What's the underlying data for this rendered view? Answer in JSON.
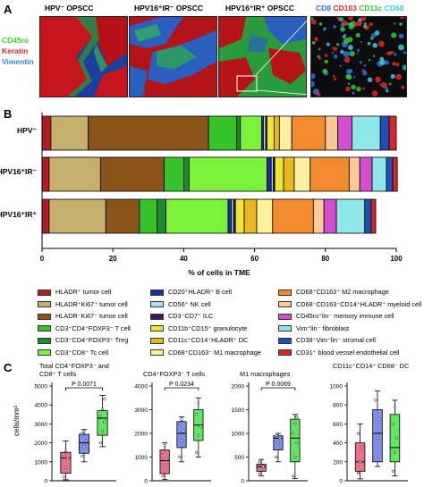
{
  "panel_a": {
    "letter": "A",
    "titles": [
      "HPV⁻ OPSCC",
      "HPV16⁺IR⁻ OPSCC",
      "HPV16⁺IR⁺ OPSCC"
    ],
    "left_markers": [
      {
        "label": "CD45ro",
        "color": "#3dd62e"
      },
      {
        "label": "Keratin",
        "color": "#e8232a"
      },
      {
        "label": "Vimentin",
        "color": "#2e86e8"
      }
    ],
    "zoom_markers": [
      {
        "label": "CD8",
        "color": "#2e6fe8"
      },
      {
        "label": "CD103",
        "color": "#e8232a"
      },
      {
        "label": "CD11c",
        "color": "#2fc92f"
      },
      {
        "label": "CD68",
        "color": "#3fc9e0"
      }
    ]
  },
  "panel_b": {
    "letter": "B",
    "xlabel": "% of cells in TME"
  },
  "panel_c": {
    "letter": "C",
    "ylabel": "cells/mm²"
  },
  "chart_data": [
    {
      "type": "bar",
      "orientation": "horizontal",
      "stacked": true,
      "xlabel": "% of cells in TME",
      "xlim": [
        0,
        100
      ],
      "xticks": [
        "0",
        "20",
        "40",
        "60",
        "80",
        "100"
      ],
      "categories": [
        "HPV⁻",
        "HPV16⁺IR⁻",
        "HPV16⁺IR⁺"
      ],
      "legend_position": "bottom",
      "series": [
        {
          "name": "HLADR⁺ tumor cell",
          "color": "#b01e23",
          "values": [
            2.5,
            2.0,
            2.0
          ]
        },
        {
          "name": "HLADR⁺Ki67⁺ tumor cell",
          "color": "#c4b06b",
          "values": [
            10.5,
            14.5,
            16.0
          ]
        },
        {
          "name": "HLADR⁻Ki67⁻ tumor cell",
          "color": "#8a5418",
          "values": [
            34.0,
            18.0,
            9.5
          ]
        },
        {
          "name": "CD3⁺CD4⁺FOXP3⁻ T cell",
          "color": "#37c42a",
          "values": [
            8.0,
            5.5,
            5.0
          ]
        },
        {
          "name": "CD3⁺CD4⁺FOXP3⁺ Treg",
          "color": "#1e8c2e",
          "values": [
            1.0,
            1.5,
            2.5
          ]
        },
        {
          "name": "CD3⁺CD8⁺ Tc cell",
          "color": "#7cf23c",
          "values": [
            6.0,
            22.0,
            17.5
          ]
        },
        {
          "name": "CD20⁺HLADR⁺ B cell",
          "color": "#1b2fa8",
          "values": [
            0.5,
            1.2,
            1.0
          ]
        },
        {
          "name": "CD56⁺ NK cell",
          "color": "#a9e3f0",
          "values": [
            0.6,
            0.6,
            0.6
          ]
        },
        {
          "name": "CD3⁻CD7⁺ ILC",
          "color": "#3a1a5c",
          "values": [
            0.4,
            0.4,
            0.5
          ]
        },
        {
          "name": "CD11b⁺CD15⁺ granulocyte",
          "color": "#efe53a",
          "values": [
            2.0,
            2.5,
            2.5
          ]
        },
        {
          "name": "CD11c⁺CD14⁺HLADR⁺ DC",
          "color": "#e8b81e",
          "values": [
            1.5,
            3.0,
            3.5
          ]
        },
        {
          "name": "CD68⁺CD163⁻ M1 macrophage",
          "color": "#fdf0a0",
          "values": [
            3.5,
            4.5,
            4.5
          ]
        },
        {
          "name": "CD68⁺CD163⁺ M2 macrophage",
          "color": "#f28a2e",
          "values": [
            9.5,
            11.0,
            11.5
          ]
        },
        {
          "name": "CD68⁻CD163⁻CD14⁺HLADR⁺ myeloid cell",
          "color": "#fbc896",
          "values": [
            3.5,
            3.0,
            3.0
          ]
        },
        {
          "name": "CD45ro⁺lin⁻ memory immune cell",
          "color": "#d44fd0",
          "values": [
            4.0,
            3.5,
            3.5
          ]
        },
        {
          "name": "Vim⁺lin⁻ fibroblast",
          "color": "#8fe8e8",
          "values": [
            8.0,
            4.0,
            8.0
          ]
        },
        {
          "name": "CD38⁺Vim⁺lin⁻ stromal cell",
          "color": "#1f4fb8",
          "values": [
            2.5,
            1.8,
            1.8
          ]
        },
        {
          "name": "CD31⁺ blood vessel endothelial cell",
          "color": "#d92727",
          "values": [
            2.0,
            1.3,
            1.3
          ]
        }
      ]
    },
    {
      "type": "box",
      "title": "Total CD4⁺FOXP3⁻ and CD8⁺ T cells",
      "ylabel": "cells/mm²",
      "ylim": [
        0,
        5000
      ],
      "yticks": [
        "0",
        "1000",
        "2000",
        "3000",
        "4000",
        "5000"
      ],
      "pvalue": "P 0.0071",
      "groups": [
        {
          "color": "#e8708a",
          "min": 50,
          "q1": 400,
          "median": 1200,
          "q3": 1500,
          "max": 2100,
          "points": [
            200,
            700,
            1200,
            1400,
            1600
          ]
        },
        {
          "color": "#7b8fe8",
          "min": 1000,
          "q1": 1450,
          "median": 2000,
          "q3": 2450,
          "max": 2700,
          "points": [
            1300,
            1800,
            2100,
            2500,
            2600
          ]
        },
        {
          "color": "#5ee85e",
          "min": 1800,
          "q1": 2400,
          "median": 3300,
          "q3": 3700,
          "max": 4500,
          "points": [
            2000,
            2600,
            3100,
            3400,
            3800,
            4300
          ]
        }
      ]
    },
    {
      "type": "box",
      "title": "CD4⁺FOXP3⁻ T cells",
      "ylim": [
        0,
        4000
      ],
      "yticks": [
        "0",
        "1000",
        "2000",
        "3000",
        "4000"
      ],
      "pvalue": "P 0.0234",
      "groups": [
        {
          "color": "#e8708a",
          "min": 60,
          "q1": 300,
          "median": 850,
          "q3": 1300,
          "max": 1600,
          "points": [
            200,
            600,
            900,
            1200,
            1500
          ]
        },
        {
          "color": "#7b8fe8",
          "min": 800,
          "q1": 1400,
          "median": 2000,
          "q3": 2500,
          "max": 2700,
          "points": [
            1000,
            1700,
            2100,
            2400,
            2600
          ]
        },
        {
          "color": "#5ee85e",
          "min": 1000,
          "q1": 1700,
          "median": 2350,
          "q3": 3000,
          "max": 3500,
          "points": [
            1200,
            1900,
            2300,
            2800,
            3300
          ]
        }
      ]
    },
    {
      "type": "box",
      "title": "M1 macrophages",
      "ylim": [
        0,
        2000
      ],
      "yticks": [
        "0",
        "500",
        "1000",
        "1500",
        "2000"
      ],
      "pvalue": "P 0.0069",
      "groups": [
        {
          "color": "#e8708a",
          "min": 100,
          "q1": 200,
          "median": 300,
          "q3": 350,
          "max": 450,
          "points": [
            150,
            250,
            300,
            400
          ]
        },
        {
          "color": "#7b8fe8",
          "min": 400,
          "q1": 650,
          "median": 900,
          "q3": 950,
          "max": 1000,
          "points": [
            500,
            800,
            900,
            950
          ]
        },
        {
          "color": "#5ee85e",
          "min": 50,
          "q1": 400,
          "median": 900,
          "q3": 1300,
          "max": 1400,
          "points": [
            100,
            500,
            800,
            1000,
            1200,
            1350
          ]
        }
      ]
    },
    {
      "type": "box",
      "title": "CD11c⁺CD14⁺ CD68⁻ DC",
      "ylim": [
        0,
        1000
      ],
      "yticks": [
        "0",
        "200",
        "400",
        "600",
        "800",
        "1000"
      ],
      "groups": [
        {
          "color": "#e8708a",
          "min": 20,
          "q1": 100,
          "median": 200,
          "q3": 400,
          "max": 600,
          "points": [
            80,
            200,
            350,
            500
          ]
        },
        {
          "color": "#7b8fe8",
          "min": 150,
          "q1": 200,
          "median": 500,
          "q3": 750,
          "max": 950,
          "points": [
            250,
            450,
            650,
            850
          ]
        },
        {
          "color": "#5ee85e",
          "min": 50,
          "q1": 200,
          "median": 350,
          "q3": 700,
          "max": 850,
          "points": [
            100,
            300,
            450,
            600,
            780
          ]
        }
      ]
    }
  ]
}
